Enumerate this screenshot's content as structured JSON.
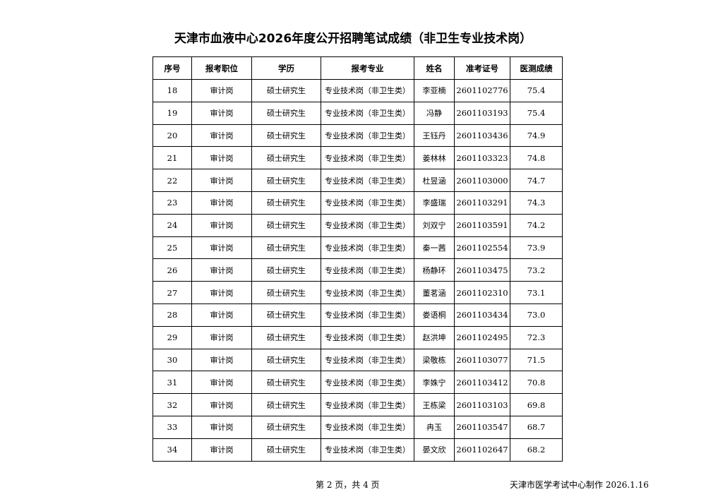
{
  "title": "天津市血液中心2026年度公开招聘笔试成绩（非卫生专业技术岗）",
  "table": {
    "headers": [
      "序号",
      "报考职位",
      "学历",
      "报考专业",
      "姓名",
      "准考证号",
      "医测成绩"
    ],
    "rows": [
      [
        "18",
        "审计岗",
        "硕士研究生",
        "专业技术岗（非卫生类）",
        "李亚楠",
        "2601102776",
        "75.4"
      ],
      [
        "19",
        "审计岗",
        "硕士研究生",
        "专业技术岗（非卫生类）",
        "冯静",
        "2601103193",
        "75.4"
      ],
      [
        "20",
        "审计岗",
        "硕士研究生",
        "专业技术岗（非卫生类）",
        "王钰丹",
        "2601103436",
        "74.9"
      ],
      [
        "21",
        "审计岗",
        "硕士研究生",
        "专业技术岗（非卫生类）",
        "姜林林",
        "2601103323",
        "74.8"
      ],
      [
        "22",
        "审计岗",
        "硕士研究生",
        "专业技术岗（非卫生类）",
        "杜昱涵",
        "2601103000",
        "74.7"
      ],
      [
        "23",
        "审计岗",
        "硕士研究生",
        "专业技术岗（非卫生类）",
        "李盛瑞",
        "2601103291",
        "74.3"
      ],
      [
        "24",
        "审计岗",
        "硕士研究生",
        "专业技术岗（非卫生类）",
        "刘双宁",
        "2601103591",
        "74.2"
      ],
      [
        "25",
        "审计岗",
        "硕士研究生",
        "专业技术岗（非卫生类）",
        "秦一茜",
        "2601102554",
        "73.9"
      ],
      [
        "26",
        "审计岗",
        "硕士研究生",
        "专业技术岗（非卫生类）",
        "杨静环",
        "2601103475",
        "73.2"
      ],
      [
        "27",
        "审计岗",
        "硕士研究生",
        "专业技术岗（非卫生类）",
        "董茗涵",
        "2601102310",
        "73.1"
      ],
      [
        "28",
        "审计岗",
        "硕士研究生",
        "专业技术岗（非卫生类）",
        "娄语桐",
        "2601103434",
        "73.0"
      ],
      [
        "29",
        "审计岗",
        "硕士研究生",
        "专业技术岗（非卫生类）",
        "赵洪坤",
        "2601102495",
        "72.3"
      ],
      [
        "30",
        "审计岗",
        "硕士研究生",
        "专业技术岗（非卫生类）",
        "梁敬栋",
        "2601103077",
        "71.5"
      ],
      [
        "31",
        "审计岗",
        "硕士研究生",
        "专业技术岗（非卫生类）",
        "李姝宁",
        "2601103412",
        "70.8"
      ],
      [
        "32",
        "审计岗",
        "硕士研究生",
        "专业技术岗（非卫生类）",
        "王栋梁",
        "2601103103",
        "69.8"
      ],
      [
        "33",
        "审计岗",
        "硕士研究生",
        "专业技术岗（非卫生类）",
        "冉玉",
        "2601103547",
        "68.7"
      ],
      [
        "34",
        "审计岗",
        "硕士研究生",
        "专业技术岗（非卫生类）",
        "晏文欣",
        "2601102647",
        "68.2"
      ]
    ]
  },
  "footer": {
    "page": "第 2 页，共 4 页",
    "maker": "天津市医学考试中心制作 2026.1.16"
  }
}
